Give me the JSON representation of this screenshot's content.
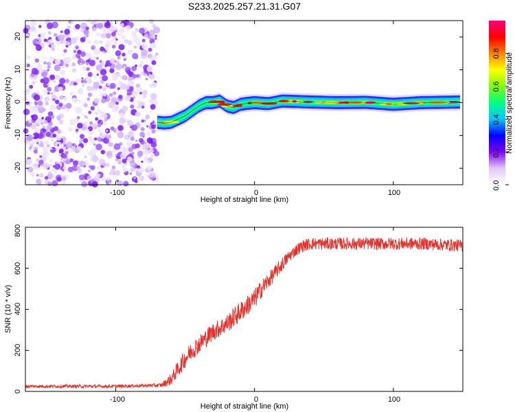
{
  "title": "S233.2025.257.21.31.G07",
  "chart_data": [
    {
      "type": "heatmap",
      "name": "spectrogram",
      "xlabel": "Height of straight line (km)",
      "ylabel": "Frequency (Hz)",
      "xlim": [
        -165,
        150
      ],
      "ylim": [
        -25,
        25
      ],
      "xticks": [
        -100,
        0,
        100
      ],
      "yticks": [
        -20,
        -10,
        0,
        10,
        20
      ],
      "xtick_labels": [
        "-100",
        "0",
        "100"
      ],
      "ytick_labels": [
        "-20",
        "-10",
        "0",
        "10",
        "20"
      ],
      "noise_region_x": [
        -165,
        -70
      ],
      "ridge": {
        "x": [
          -70,
          -65,
          -60,
          -55,
          -50,
          -45,
          -40,
          -35,
          -30,
          -25,
          -20,
          -15,
          -10,
          -5,
          0,
          10,
          20,
          40,
          60,
          80,
          100,
          120,
          148
        ],
        "freq": [
          -6,
          -6.2,
          -6,
          -5,
          -4,
          -2.5,
          -1,
          0,
          0,
          0.5,
          -1,
          -1.5,
          -0.5,
          -0.2,
          0,
          -0.3,
          0.5,
          0.2,
          0,
          0.1,
          -0.5,
          0,
          0.2
        ]
      },
      "colorbar": {
        "label": "Normalized spectral amplitude",
        "range": [
          0,
          1
        ],
        "ticks": [
          0.0,
          0.2,
          0.4,
          0.6,
          0.8
        ],
        "tick_labels": [
          "0.0",
          "0.2",
          "0.4",
          "0.6",
          "0.8"
        ],
        "colors": [
          "#ffffff",
          "#e0c8ff",
          "#8000ff",
          "#0000ff",
          "#00c8ff",
          "#00ff80",
          "#80ff00",
          "#ffff00",
          "#ff8000",
          "#ff0000",
          "#ff0080"
        ]
      }
    },
    {
      "type": "line",
      "name": "snr",
      "xlabel": "Height of straight line (km)",
      "ylabel": "SNR (10 * v/v)",
      "xlim": [
        -165,
        150
      ],
      "ylim": [
        0,
        800
      ],
      "xticks": [
        -100,
        0,
        100
      ],
      "yticks": [
        0,
        200,
        400,
        600,
        800
      ],
      "xtick_labels": [
        "-100",
        "0",
        "100"
      ],
      "ytick_labels": [
        "0",
        "200",
        "400",
        "600",
        "800"
      ],
      "color": "#e8302a",
      "series": [
        {
          "name": "SNR",
          "x": [
            -165,
            -140,
            -120,
            -100,
            -80,
            -67,
            -60,
            -55,
            -50,
            -45,
            -40,
            -35,
            -30,
            -25,
            -20,
            -15,
            -10,
            -5,
            0,
            5,
            10,
            15,
            20,
            25,
            30,
            35,
            40,
            60,
            80,
            100,
            120,
            150
          ],
          "y": [
            25,
            25,
            25,
            25,
            28,
            30,
            60,
            110,
            160,
            200,
            230,
            260,
            290,
            310,
            330,
            360,
            390,
            420,
            450,
            500,
            540,
            580,
            620,
            660,
            690,
            710,
            720,
            720,
            720,
            720,
            720,
            710
          ],
          "jitter": [
            8,
            8,
            8,
            8,
            8,
            10,
            30,
            40,
            45,
            45,
            45,
            45,
            45,
            45,
            45,
            50,
            50,
            50,
            50,
            45,
            40,
            35,
            35,
            30,
            30,
            30,
            30,
            30,
            30,
            30,
            30,
            30
          ]
        }
      ]
    }
  ]
}
